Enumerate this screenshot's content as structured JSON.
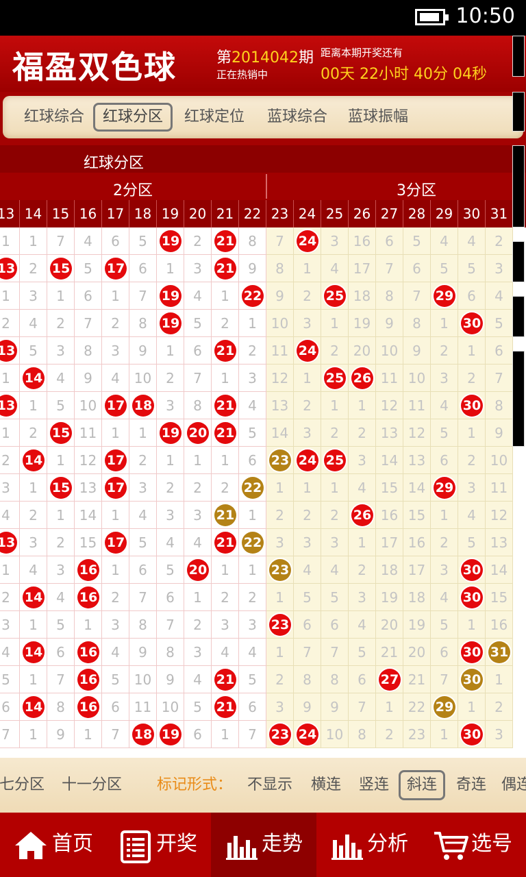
{
  "status_bar": {
    "time": "10:50"
  },
  "header": {
    "app_title": "福盈双色球",
    "issue_prefix": "第",
    "issue_number": "2014042",
    "issue_suffix": "期",
    "on_sale": "正在热销中",
    "countdown_label": "距离本期开奖还有",
    "countdown": "00天 22小时 40分 04秒"
  },
  "tabs": [
    {
      "label": "红球综合",
      "active": false
    },
    {
      "label": "红球分区",
      "active": true
    },
    {
      "label": "红球定位",
      "active": false
    },
    {
      "label": "蓝球综合",
      "active": false
    },
    {
      "label": "蓝球振幅",
      "active": false
    }
  ],
  "table": {
    "title": "红球分区",
    "zones": [
      {
        "label": "2分区"
      },
      {
        "label": "3分区"
      }
    ],
    "columns": [
      "13",
      "14",
      "15",
      "16",
      "17",
      "18",
      "19",
      "20",
      "21",
      "22",
      "23",
      "24",
      "25",
      "26",
      "27",
      "28",
      "29",
      "30",
      "31"
    ],
    "rows": [
      [
        "1",
        "1",
        "7",
        "4",
        "6",
        "5",
        "19",
        "2",
        "21",
        "8",
        "7",
        "24",
        "3",
        "16",
        "6",
        "5",
        "4",
        "4",
        "2"
      ],
      [
        "13",
        "2",
        "15",
        "5",
        "17",
        "6",
        "1",
        "3",
        "21",
        "9",
        "8",
        "1",
        "4",
        "17",
        "7",
        "6",
        "5",
        "5",
        "3"
      ],
      [
        "1",
        "3",
        "1",
        "6",
        "1",
        "7",
        "19",
        "4",
        "1",
        "22",
        "9",
        "2",
        "25",
        "18",
        "8",
        "7",
        "29",
        "6",
        "4"
      ],
      [
        "2",
        "4",
        "2",
        "7",
        "2",
        "8",
        "19",
        "5",
        "2",
        "1",
        "10",
        "3",
        "1",
        "19",
        "9",
        "8",
        "1",
        "30",
        "5"
      ],
      [
        "13",
        "5",
        "3",
        "8",
        "3",
        "9",
        "1",
        "6",
        "21",
        "2",
        "11",
        "24",
        "2",
        "20",
        "10",
        "9",
        "2",
        "1",
        "6"
      ],
      [
        "1",
        "14",
        "4",
        "9",
        "4",
        "10",
        "2",
        "7",
        "1",
        "3",
        "12",
        "1",
        "25",
        "26",
        "11",
        "10",
        "3",
        "2",
        "7"
      ],
      [
        "13",
        "1",
        "5",
        "10",
        "17",
        "18",
        "3",
        "8",
        "21",
        "4",
        "13",
        "2",
        "1",
        "1",
        "12",
        "11",
        "4",
        "30",
        "8"
      ],
      [
        "1",
        "2",
        "15",
        "11",
        "1",
        "1",
        "19",
        "20",
        "21",
        "5",
        "14",
        "3",
        "2",
        "2",
        "13",
        "12",
        "5",
        "1",
        "9"
      ],
      [
        "2",
        "14",
        "1",
        "12",
        "17",
        "2",
        "1",
        "1",
        "1",
        "6",
        "23",
        "24",
        "25",
        "3",
        "14",
        "13",
        "6",
        "2",
        "10"
      ],
      [
        "3",
        "1",
        "15",
        "13",
        "17",
        "3",
        "2",
        "2",
        "2",
        "22",
        "1",
        "1",
        "1",
        "4",
        "15",
        "14",
        "29",
        "3",
        "11"
      ],
      [
        "4",
        "2",
        "1",
        "14",
        "1",
        "4",
        "3",
        "3",
        "21",
        "1",
        "2",
        "2",
        "2",
        "26",
        "16",
        "15",
        "1",
        "4",
        "12"
      ],
      [
        "13",
        "3",
        "2",
        "15",
        "17",
        "5",
        "4",
        "4",
        "21",
        "22",
        "3",
        "3",
        "3",
        "1",
        "17",
        "16",
        "2",
        "5",
        "13"
      ],
      [
        "1",
        "4",
        "3",
        "16",
        "1",
        "6",
        "5",
        "20",
        "1",
        "1",
        "23",
        "4",
        "4",
        "2",
        "18",
        "17",
        "3",
        "30",
        "14"
      ],
      [
        "2",
        "14",
        "4",
        "16",
        "2",
        "7",
        "6",
        "1",
        "2",
        "2",
        "1",
        "5",
        "5",
        "3",
        "19",
        "18",
        "4",
        "30",
        "15"
      ],
      [
        "3",
        "1",
        "5",
        "1",
        "3",
        "8",
        "7",
        "2",
        "3",
        "3",
        "23",
        "6",
        "6",
        "4",
        "20",
        "19",
        "5",
        "1",
        "16"
      ],
      [
        "4",
        "14",
        "6",
        "16",
        "4",
        "9",
        "8",
        "3",
        "4",
        "4",
        "1",
        "7",
        "7",
        "5",
        "21",
        "20",
        "6",
        "30",
        "31"
      ],
      [
        "5",
        "1",
        "7",
        "16",
        "5",
        "10",
        "9",
        "4",
        "21",
        "5",
        "2",
        "8",
        "8",
        "6",
        "27",
        "21",
        "7",
        "30",
        "1"
      ],
      [
        "6",
        "14",
        "8",
        "16",
        "6",
        "11",
        "10",
        "5",
        "21",
        "6",
        "3",
        "9",
        "9",
        "7",
        "1",
        "22",
        "29",
        "1",
        "2"
      ],
      [
        "7",
        "1",
        "9",
        "1",
        "7",
        "18",
        "19",
        "6",
        "1",
        "7",
        "23",
        "24",
        "10",
        "8",
        "2",
        "23",
        "1",
        "30",
        "3"
      ]
    ],
    "hits": [
      [
        "",
        "",
        "",
        "",
        "",
        "",
        "r",
        "",
        "r",
        "",
        "",
        "r",
        "",
        "",
        "",
        "",
        "",
        "",
        ""
      ],
      [
        "r",
        "",
        "r",
        "",
        "r",
        "",
        "",
        "",
        "r",
        "",
        "",
        "",
        "",
        "",
        "",
        "",
        "",
        "",
        ""
      ],
      [
        "",
        "",
        "",
        "",
        "",
        "",
        "r",
        "",
        "",
        "r",
        "",
        "",
        "r",
        "",
        "",
        "",
        "r",
        "",
        ""
      ],
      [
        "",
        "",
        "",
        "",
        "",
        "",
        "r",
        "",
        "",
        "",
        "",
        "",
        "",
        "",
        "",
        "",
        "",
        "r",
        ""
      ],
      [
        "r",
        "",
        "",
        "",
        "",
        "",
        "",
        "",
        "r",
        "",
        "",
        "r",
        "",
        "",
        "",
        "",
        "",
        "",
        ""
      ],
      [
        "",
        "r",
        "",
        "",
        "",
        "",
        "",
        "",
        "",
        "",
        "",
        "",
        "r",
        "r",
        "",
        "",
        "",
        "",
        ""
      ],
      [
        "r",
        "",
        "",
        "",
        "r",
        "r",
        "",
        "",
        "r",
        "",
        "",
        "",
        "",
        "",
        "",
        "",
        "",
        "r",
        ""
      ],
      [
        "",
        "",
        "r",
        "",
        "",
        "",
        "r",
        "r",
        "r",
        "",
        "",
        "",
        "",
        "",
        "",
        "",
        "",
        "",
        ""
      ],
      [
        "",
        "r",
        "",
        "",
        "r",
        "",
        "",
        "",
        "",
        "",
        "g",
        "r",
        "r",
        "",
        "",
        "",
        "",
        "",
        ""
      ],
      [
        "",
        "",
        "r",
        "",
        "r",
        "",
        "",
        "",
        "",
        "g",
        "",
        "",
        "",
        "",
        "",
        "",
        "r",
        "",
        ""
      ],
      [
        "",
        "",
        "",
        "",
        "",
        "",
        "",
        "",
        "g",
        "",
        "",
        "",
        "",
        "r",
        "",
        "",
        "",
        "",
        ""
      ],
      [
        "r",
        "",
        "",
        "",
        "r",
        "",
        "",
        "",
        "r",
        "g",
        "",
        "",
        "",
        "",
        "",
        "",
        "",
        "",
        ""
      ],
      [
        "",
        "",
        "",
        "r",
        "",
        "",
        "",
        "r",
        "",
        "",
        "g",
        "",
        "",
        "",
        "",
        "",
        "",
        "r",
        ""
      ],
      [
        "",
        "r",
        "",
        "r",
        "",
        "",
        "",
        "",
        "",
        "",
        "",
        "",
        "",
        "",
        "",
        "",
        "",
        "r",
        ""
      ],
      [
        "",
        "",
        "",
        "",
        "",
        "",
        "",
        "",
        "",
        "",
        "r",
        "",
        "",
        "",
        "",
        "",
        "",
        "",
        ""
      ],
      [
        "",
        "r",
        "",
        "r",
        "",
        "",
        "",
        "",
        "",
        "",
        "",
        "",
        "",
        "",
        "",
        "",
        "",
        "r",
        "g"
      ],
      [
        "",
        "",
        "",
        "r",
        "",
        "",
        "",
        "",
        "r",
        "",
        "",
        "",
        "",
        "",
        "r",
        "",
        "",
        "g",
        ""
      ],
      [
        "",
        "r",
        "",
        "r",
        "",
        "",
        "",
        "",
        "r",
        "",
        "",
        "",
        "",
        "",
        "",
        "",
        "g",
        "",
        ""
      ],
      [
        "",
        "",
        "",
        "",
        "",
        "r",
        "r",
        "",
        "",
        "",
        "r",
        "r",
        "",
        "",
        "",
        "",
        "",
        "r",
        ""
      ]
    ]
  },
  "mark_bar": {
    "items": [
      "七分区",
      "十一分区"
    ],
    "mark_label": "标记形式：",
    "options": [
      {
        "label": "不显示",
        "active": false
      },
      {
        "label": "横连",
        "active": false
      },
      {
        "label": "竖连",
        "active": false
      },
      {
        "label": "斜连",
        "active": true
      },
      {
        "label": "奇连",
        "active": false
      },
      {
        "label": "偶连",
        "active": false
      }
    ]
  },
  "bottom_nav": [
    {
      "label": "首页",
      "icon": "home-icon",
      "active": false
    },
    {
      "label": "开奖",
      "icon": "list-icon",
      "active": false
    },
    {
      "label": "走势",
      "icon": "bar-chart-icon",
      "active": true
    },
    {
      "label": "分析",
      "icon": "analysis-chart-icon",
      "active": false
    },
    {
      "label": "选号",
      "icon": "cart-icon",
      "active": false
    }
  ],
  "colors": {
    "header_red": "#b30000",
    "ball_red": "#e4090c",
    "ball_gold": "#b48216",
    "countdown_yellow": "#ffd21e",
    "mark_orange": "#e98b17"
  }
}
